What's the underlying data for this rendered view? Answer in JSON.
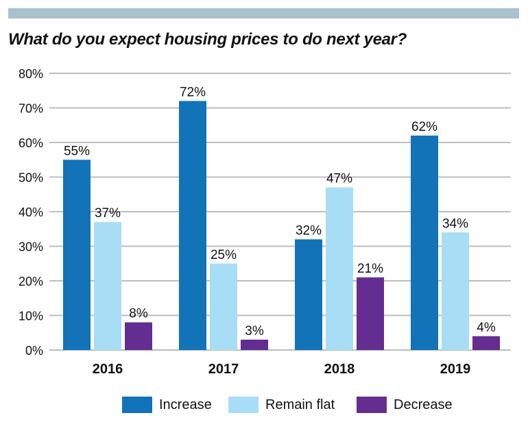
{
  "header": {
    "title": "What do you expect housing prices to do next year?"
  },
  "colors": {
    "band": "#a9c1cc",
    "grid": "#bdbdbd",
    "increase": "#1273b9",
    "remain_flat": "#a8ddf6",
    "decrease": "#642d91"
  },
  "chart_data": {
    "type": "bar",
    "title": "What do you expect housing prices to do next year?",
    "categories": [
      "2016",
      "2017",
      "2018",
      "2019"
    ],
    "series": [
      {
        "name": "Increase",
        "values": [
          55,
          72,
          32,
          62
        ],
        "labels": [
          "55%",
          "72%",
          "32%",
          "62%"
        ]
      },
      {
        "name": "Remain flat",
        "values": [
          37,
          25,
          47,
          34
        ],
        "labels": [
          "37%",
          "25%",
          "47%",
          "34%"
        ]
      },
      {
        "name": "Decrease",
        "values": [
          8,
          3,
          21,
          4
        ],
        "labels": [
          "8%",
          "3%",
          "21%",
          "4%"
        ]
      }
    ],
    "ylim": [
      0,
      80
    ],
    "yticks": [
      "0%",
      "10%",
      "20%",
      "30%",
      "40%",
      "50%",
      "60%",
      "70%",
      "80%"
    ],
    "grid": true,
    "legend_position": "bottom"
  },
  "legend": {
    "items": [
      {
        "label": "Increase"
      },
      {
        "label": "Remain flat"
      },
      {
        "label": "Decrease"
      }
    ]
  }
}
